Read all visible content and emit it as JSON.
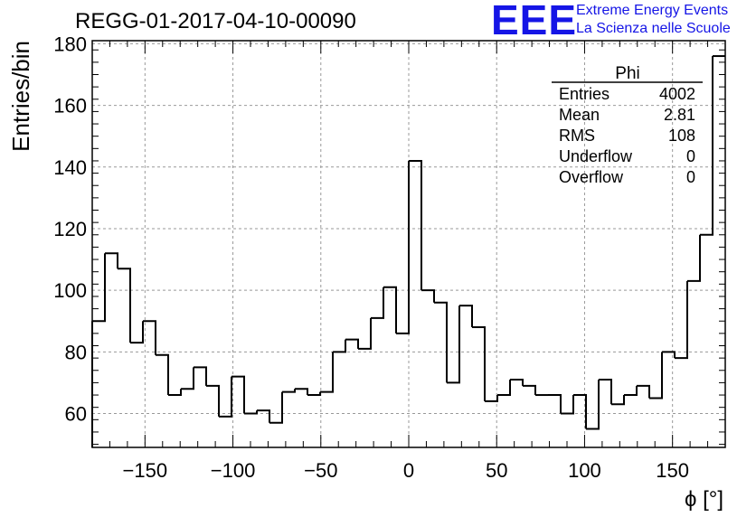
{
  "header": {
    "title": "REGG-01-2017-04-10-00090",
    "logo_text": "EEE",
    "logo_line1": "Extreme Energy Events",
    "logo_line2": "La Scienza nelle Scuole",
    "logo_color": "#1515e6"
  },
  "stats_box": {
    "name": "Phi",
    "rows": [
      {
        "label": "Entries",
        "value": "4002"
      },
      {
        "label": "Mean",
        "value": "2.81"
      },
      {
        "label": "RMS",
        "value": "108"
      },
      {
        "label": "Underflow",
        "value": "0"
      },
      {
        "label": "Overflow",
        "value": "0"
      }
    ]
  },
  "chart_data": {
    "type": "bar",
    "histogram": true,
    "xlabel": "ϕ [°]",
    "ylabel": "Entries/bin",
    "xlim": [
      -180,
      180
    ],
    "ylim": [
      49,
      181
    ],
    "bin_width": 7.2,
    "bin_start": -180,
    "x_ticks": [
      -150,
      -100,
      -50,
      0,
      50,
      100,
      150
    ],
    "x_tick_labels": [
      "−150",
      "−100",
      "−50",
      "0",
      "50",
      "100",
      "150"
    ],
    "y_ticks": [
      60,
      80,
      100,
      120,
      140,
      160,
      180
    ],
    "y_tick_labels": [
      "60",
      "80",
      "100",
      "120",
      "140",
      "160",
      "180"
    ],
    "grid": true,
    "values": [
      90,
      112,
      107,
      83,
      90,
      79,
      66,
      68,
      75,
      69,
      59,
      72,
      60,
      61,
      57,
      67,
      68,
      66,
      67,
      80,
      84,
      81,
      91,
      101,
      86,
      142,
      100,
      96,
      70,
      95,
      88,
      64,
      66,
      71,
      69,
      66,
      66,
      60,
      66,
      55,
      71,
      63,
      66,
      69,
      65,
      80,
      78,
      103,
      118,
      176
    ]
  }
}
